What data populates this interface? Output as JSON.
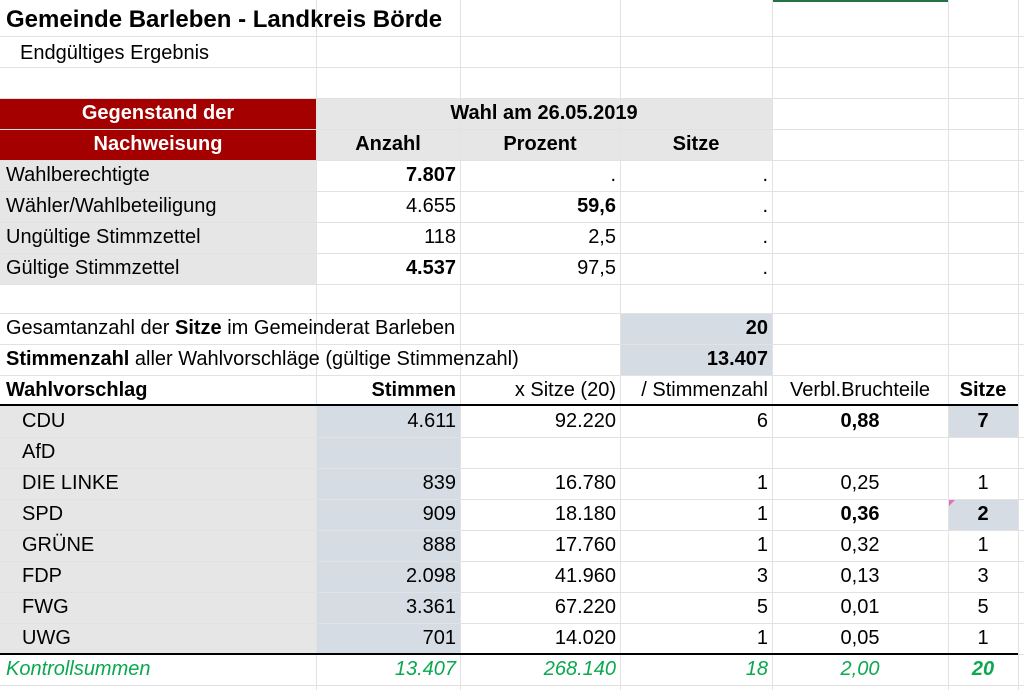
{
  "title": "Gemeinde Barleben - Landkreis Börde",
  "subtitle": "Endgültiges Ergebnis",
  "header": {
    "subject_line1": "Gegenstand der",
    "subject_line2": "Nachweisung",
    "election": "Wahl am 26.05.2019",
    "col_anzahl": "Anzahl",
    "col_prozent": "Prozent",
    "col_sitze": "Sitze"
  },
  "stats": [
    {
      "label": "Wahlberechtigte",
      "anzahl": "7.807",
      "prozent": ".",
      "sitze": "."
    },
    {
      "label": "Wähler/Wahlbeteiligung",
      "anzahl": "4.655",
      "prozent": "59,6",
      "sitze": "."
    },
    {
      "label": "Ungültige Stimmzettel",
      "anzahl": "118",
      "prozent": "2,5",
      "sitze": "."
    },
    {
      "label": "Gültige Stimmzettel",
      "anzahl": "4.537",
      "prozent": "97,5",
      "sitze": "."
    }
  ],
  "seats_total": {
    "pre": "Gesamtanzahl der ",
    "bold": "Sitze",
    "post": " im Gemeinderat Barleben",
    "value": "20"
  },
  "votes_total": {
    "bold": "Stimmenzahl",
    "post": " aller Wahlvorschläge (gültige Stimmenzahl)",
    "value": "13.407"
  },
  "table_header": {
    "party": "Wahlvorschlag",
    "stimmen": "Stimmen",
    "x_sitze": "x Sitze (20)",
    "div": "/ Stimmenzahl",
    "rest": "Verbl.Bruchteile",
    "sitze": "Sitze"
  },
  "parties": [
    {
      "name": "CDU",
      "stimmen": "4.611",
      "x_sitze": "92.220",
      "div": "6",
      "rest": "0,88",
      "sitze": "7"
    },
    {
      "name": "AfD",
      "stimmen": "",
      "x_sitze": "",
      "div": "",
      "rest": "",
      "sitze": ""
    },
    {
      "name": "DIE LINKE",
      "stimmen": "839",
      "x_sitze": "16.780",
      "div": "1",
      "rest": "0,25",
      "sitze": "1"
    },
    {
      "name": "SPD",
      "stimmen": "909",
      "x_sitze": "18.180",
      "div": "1",
      "rest": "0,36",
      "sitze": "2"
    },
    {
      "name": "GRÜNE",
      "stimmen": "888",
      "x_sitze": "17.760",
      "div": "1",
      "rest": "0,32",
      "sitze": "1"
    },
    {
      "name": "FDP",
      "stimmen": "2.098",
      "x_sitze": "41.960",
      "div": "3",
      "rest": "0,13",
      "sitze": "3"
    },
    {
      "name": "FWG",
      "stimmen": "3.361",
      "x_sitze": "67.220",
      "div": "5",
      "rest": "0,01",
      "sitze": "5"
    },
    {
      "name": "UWG",
      "stimmen": "701",
      "x_sitze": "14.020",
      "div": "1",
      "rest": "0,05",
      "sitze": "1"
    }
  ],
  "control": {
    "label": "Kontrollsummen",
    "stimmen": "13.407",
    "x_sitze": "268.140",
    "div": "18",
    "rest": "2,00",
    "sitze": "20"
  },
  "colors": {
    "header_red": "#a50000",
    "gray_fill": "#e6e6e6",
    "blue_gray_fill": "#d6dce4",
    "control_green": "#0aa84f"
  }
}
